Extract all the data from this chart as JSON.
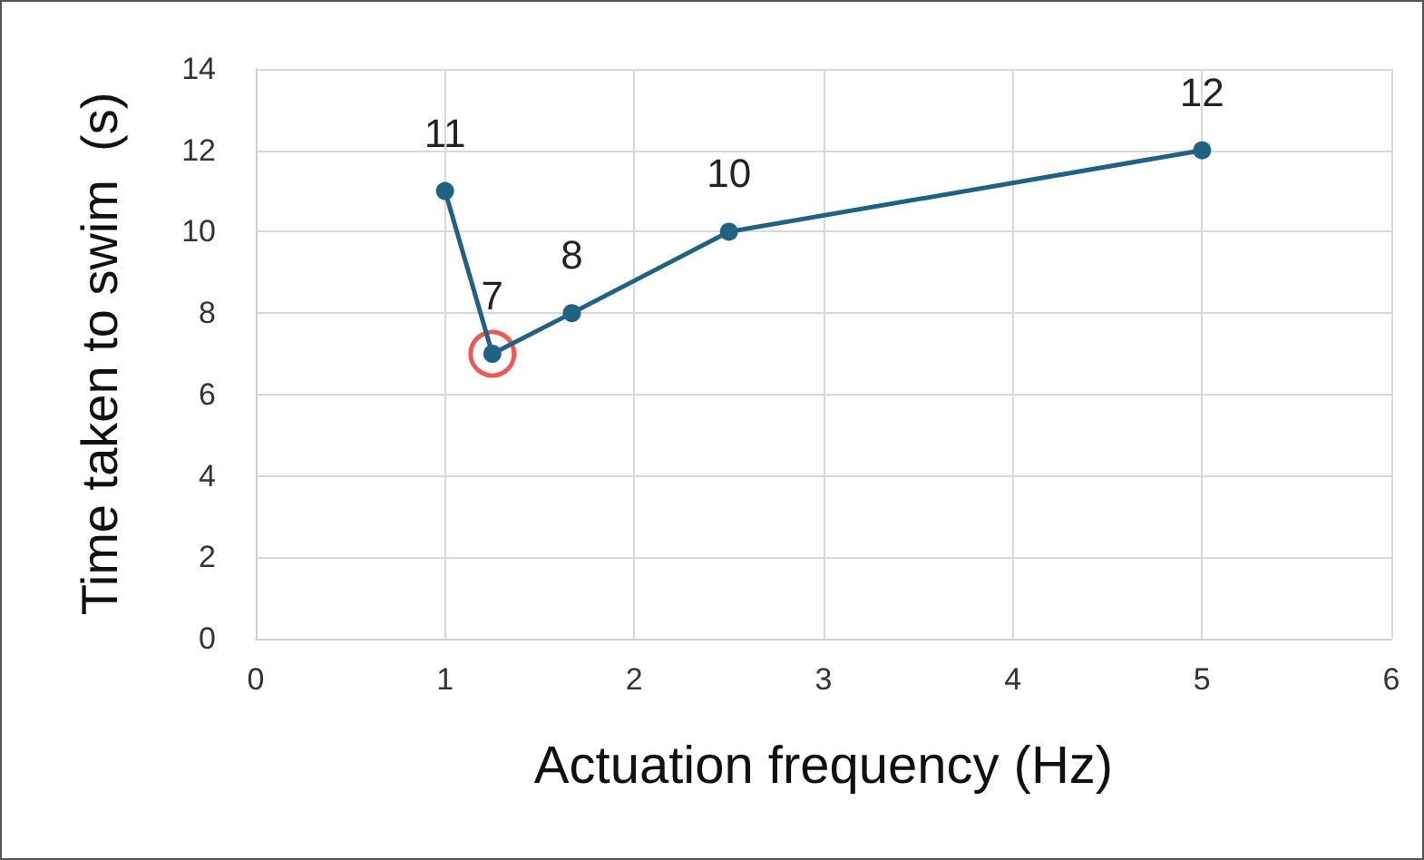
{
  "chart_data": {
    "type": "line",
    "xlabel": "Actuation frequency (Hz)",
    "ylabel": "Time taken to swim  (s)",
    "x": [
      1,
      1.25,
      1.67,
      2.5,
      5
    ],
    "series": [
      {
        "type": "scatter",
        "color": "#e8312a",
        "x": [
          1.25
        ],
        "values": [
          7
        ],
        "value_labels": [
          null
        ],
        "marker": "circle"
      },
      {
        "color": "#1f6283",
        "values": [
          11,
          7,
          8,
          10,
          12
        ],
        "value_labels": [
          "11",
          "7",
          "8",
          "10",
          "12"
        ],
        "marker": "circle"
      }
    ],
    "xlim": [
      0,
      6
    ],
    "xticks": [
      0,
      1,
      2,
      3,
      4,
      5,
      6
    ],
    "ylim": [
      0,
      14
    ],
    "yticks": [
      0,
      2,
      4,
      6,
      8,
      10,
      12,
      14
    ],
    "grid": true,
    "line_style": "solid"
  }
}
